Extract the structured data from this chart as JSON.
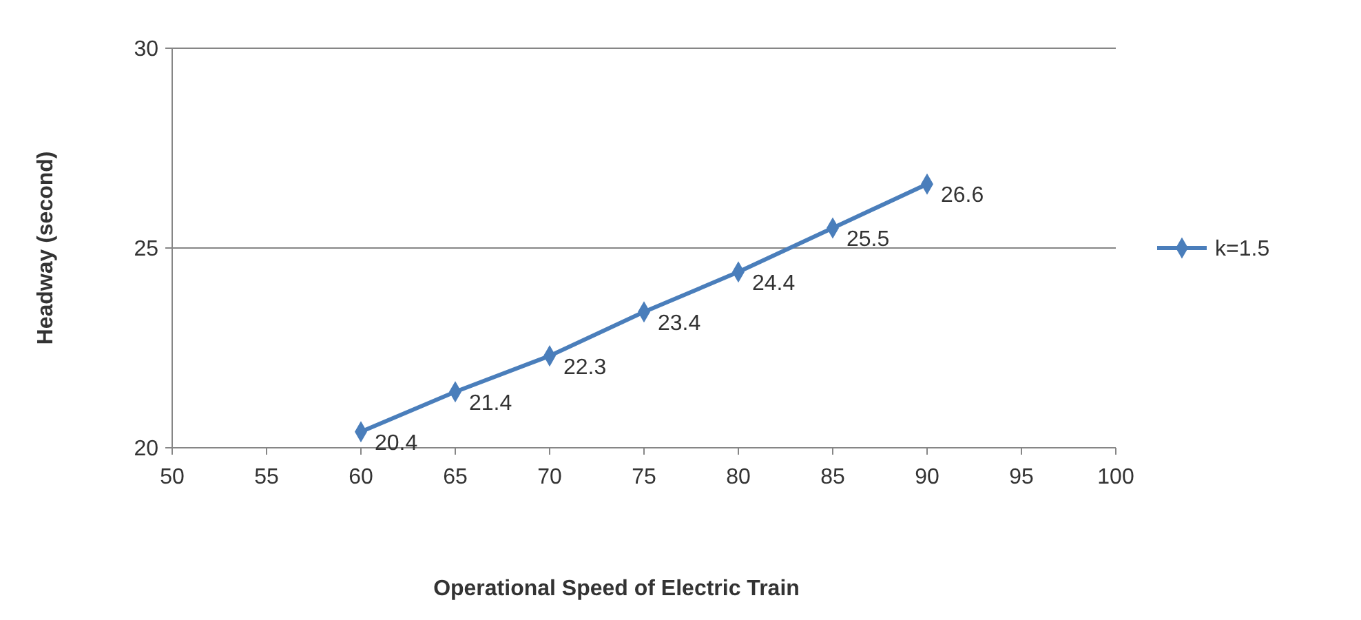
{
  "chart_data": {
    "type": "line",
    "xlabel": "Operational Speed of Electric Train",
    "ylabel": "Headway (second)",
    "x": [
      60,
      65,
      70,
      75,
      80,
      85,
      90
    ],
    "series": [
      {
        "name": "k=1.5",
        "color": "#4a7ebb",
        "values": [
          20.4,
          21.4,
          22.3,
          23.4,
          24.4,
          25.5,
          26.6
        ]
      }
    ],
    "xlim": [
      50,
      100
    ],
    "xticks": [
      50,
      55,
      60,
      65,
      70,
      75,
      80,
      85,
      90,
      95,
      100
    ],
    "ylim": [
      20,
      30
    ],
    "yticks": [
      20,
      25,
      30
    ],
    "grid": "y",
    "legend": "right",
    "marker": "diamond",
    "line_style": "solid",
    "data_labels": true
  }
}
